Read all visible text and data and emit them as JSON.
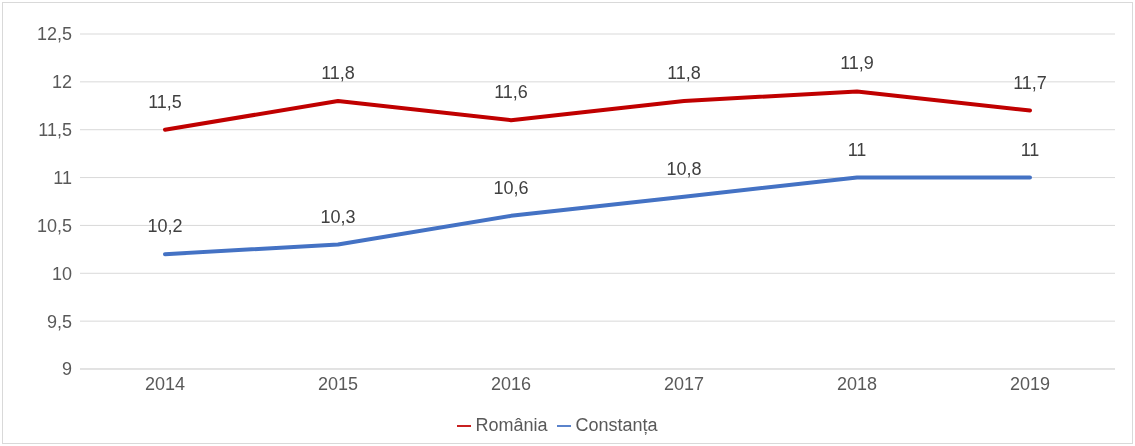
{
  "chart_data": {
    "type": "line",
    "categories": [
      "2014",
      "2015",
      "2016",
      "2017",
      "2018",
      "2019"
    ],
    "series": [
      {
        "name": "România",
        "color": "#c00000",
        "values": [
          11.5,
          11.8,
          11.6,
          11.8,
          11.9,
          11.7
        ],
        "value_labels": [
          "11,5",
          "11,8",
          "11,6",
          "11,8",
          "11,9",
          "11,7"
        ]
      },
      {
        "name": "Constanța",
        "color": "#4472c4",
        "values": [
          10.2,
          10.3,
          10.6,
          10.8,
          11,
          11
        ],
        "value_labels": [
          "10,2",
          "10,3",
          "10,6",
          "10,8",
          "11",
          "11"
        ]
      }
    ],
    "ylim": [
      9,
      12.5
    ],
    "yticks": [
      9,
      {
        "value": 9.5,
        "label": "9,5"
      },
      10,
      {
        "value": 10.5,
        "label": "10,5"
      },
      11,
      {
        "value": 11.5,
        "label": "11,5"
      },
      12,
      {
        "value": 12.5,
        "label": "12,5"
      }
    ],
    "grid": "y",
    "legend": "bottom",
    "marker": "none",
    "line_style": "solid"
  }
}
